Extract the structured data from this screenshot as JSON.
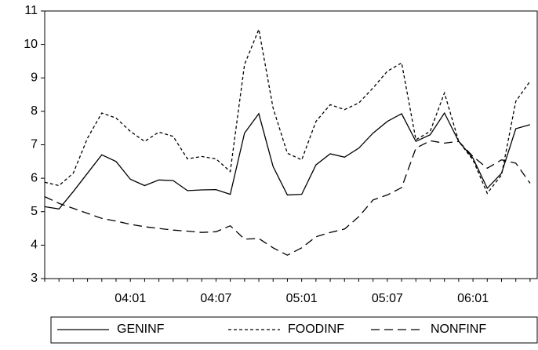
{
  "chart_data": {
    "type": "line",
    "categories": [
      null,
      null,
      null,
      null,
      null,
      null,
      "04:01",
      null,
      null,
      null,
      null,
      null,
      "04:07",
      null,
      null,
      null,
      null,
      null,
      "05:01",
      null,
      null,
      null,
      null,
      null,
      "05:07",
      null,
      null,
      null,
      null,
      null,
      "06:01",
      null,
      null,
      null,
      null
    ],
    "series": [
      {
        "name": "GENINF",
        "color": "#000000",
        "dash": "solid",
        "values": [
          5.15,
          5.08,
          5.6,
          6.15,
          6.7,
          6.5,
          5.97,
          5.78,
          5.95,
          5.93,
          5.63,
          5.65,
          5.66,
          5.52,
          7.35,
          7.93,
          6.35,
          5.5,
          5.52,
          6.4,
          6.73,
          6.63,
          6.9,
          7.35,
          7.7,
          7.93,
          7.1,
          7.3,
          7.95,
          7.1,
          6.6,
          5.7,
          6.15,
          7.48,
          7.6
        ]
      },
      {
        "name": "FOODINF",
        "color": "#000000",
        "dash": "short",
        "values": [
          5.88,
          5.78,
          6.15,
          7.2,
          7.95,
          7.8,
          7.4,
          7.1,
          7.38,
          7.25,
          6.58,
          6.65,
          6.58,
          6.2,
          9.4,
          10.45,
          8.1,
          6.75,
          6.55,
          7.7,
          8.2,
          8.05,
          8.25,
          8.7,
          9.2,
          9.45,
          7.15,
          7.4,
          8.55,
          7.1,
          6.55,
          5.55,
          6.1,
          8.3,
          8.9
        ]
      },
      {
        "name": "NONFINF",
        "color": "#000000",
        "dash": "long",
        "values": [
          5.45,
          5.25,
          5.1,
          4.95,
          4.8,
          4.72,
          4.62,
          4.55,
          4.5,
          4.45,
          4.42,
          4.38,
          4.4,
          4.58,
          4.18,
          4.2,
          3.92,
          3.7,
          3.92,
          4.25,
          4.38,
          4.48,
          4.85,
          5.35,
          5.5,
          5.72,
          6.9,
          7.12,
          7.05,
          7.1,
          6.65,
          6.3,
          6.55,
          6.45,
          5.85
        ]
      }
    ],
    "ylim": [
      3,
      11
    ],
    "yticks": [
      3,
      4,
      5,
      6,
      7,
      8,
      9,
      10,
      11
    ],
    "legend": "bottom"
  }
}
